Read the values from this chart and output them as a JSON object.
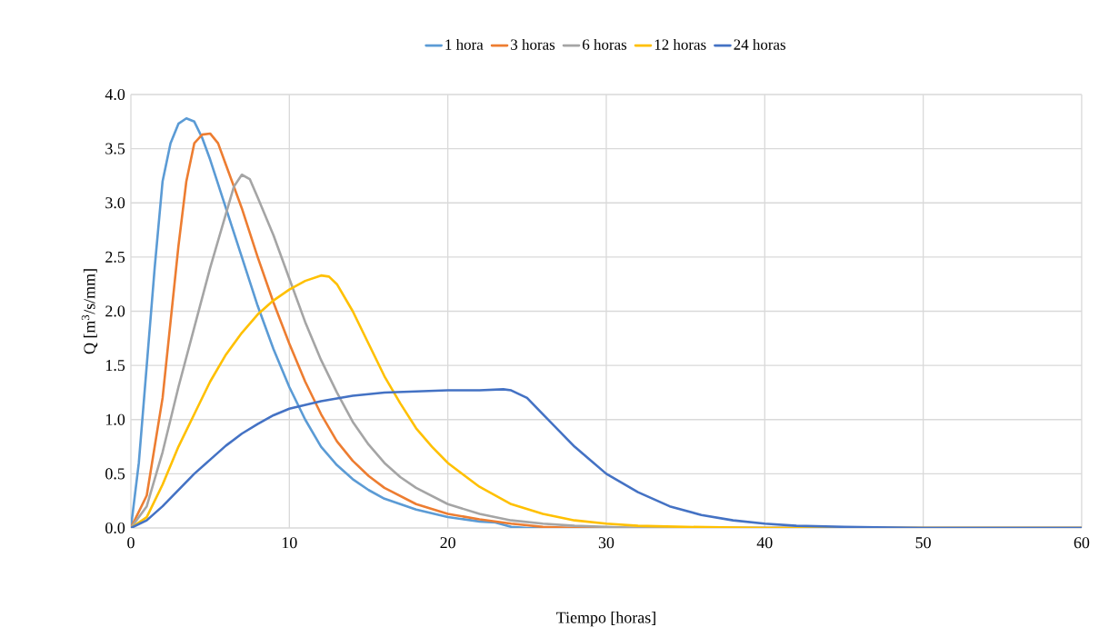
{
  "chart_data": {
    "type": "line",
    "xlabel": "Tiempo [horas]",
    "ylabel": "Q [m$^{3}$/s/mm]",
    "xlim": [
      0,
      60
    ],
    "xticks": [
      0,
      10,
      20,
      30,
      40,
      50,
      60
    ],
    "ylim": [
      0,
      4
    ],
    "yticks": [
      {
        "value": 0,
        "label": "0.0"
      },
      {
        "value": 0.5,
        "label": "0.5"
      },
      {
        "value": 1,
        "label": "1.0"
      },
      {
        "value": 1.5,
        "label": "1.5"
      },
      {
        "value": 2,
        "label": "2.0"
      },
      {
        "value": 2.5,
        "label": "2.5"
      },
      {
        "value": 3,
        "label": "3.0"
      },
      {
        "value": 3.5,
        "label": "3.5"
      },
      {
        "value": 4,
        "label": "4.0"
      }
    ],
    "grid": true,
    "legend": "top",
    "marker": "none",
    "line_style": "solid",
    "series": [
      {
        "name": "1 hora",
        "color": "#5b9bd5",
        "x": [
          0,
          0.5,
          1,
          1.5,
          2,
          2.5,
          3,
          3.5,
          4,
          4.5,
          5,
          6,
          7,
          8,
          9,
          10,
          11,
          12,
          13,
          14,
          15,
          16,
          18,
          20,
          22,
          23,
          24,
          25,
          30,
          60
        ],
        "values": [
          0,
          0.6,
          1.5,
          2.4,
          3.2,
          3.55,
          3.73,
          3.78,
          3.75,
          3.6,
          3.4,
          2.95,
          2.5,
          2.05,
          1.65,
          1.3,
          1.0,
          0.75,
          0.58,
          0.45,
          0.35,
          0.27,
          0.17,
          0.1,
          0.06,
          0.05,
          0.01,
          0,
          0,
          0
        ]
      },
      {
        "name": "3 horas",
        "color": "#ed7d31",
        "x": [
          0,
          1,
          2,
          2.5,
          3,
          3.5,
          4,
          4.5,
          5,
          5.5,
          6,
          7,
          8,
          9,
          10,
          11,
          12,
          13,
          14,
          15,
          16,
          18,
          20,
          22,
          24,
          26,
          28,
          60
        ],
        "values": [
          0,
          0.3,
          1.2,
          1.9,
          2.6,
          3.2,
          3.55,
          3.63,
          3.64,
          3.55,
          3.35,
          2.95,
          2.5,
          2.08,
          1.7,
          1.35,
          1.05,
          0.8,
          0.62,
          0.48,
          0.37,
          0.22,
          0.13,
          0.08,
          0.04,
          0.01,
          0,
          0
        ]
      },
      {
        "name": "6 horas",
        "color": "#a5a5a5",
        "x": [
          0,
          1,
          2,
          3,
          4,
          5,
          6,
          6.5,
          7,
          7.5,
          8,
          9,
          10,
          11,
          12,
          13,
          14,
          15,
          16,
          17,
          18,
          20,
          22,
          24,
          26,
          28,
          30,
          32,
          60
        ],
        "values": [
          0,
          0.2,
          0.7,
          1.3,
          1.85,
          2.4,
          2.9,
          3.15,
          3.26,
          3.22,
          3.05,
          2.7,
          2.3,
          1.9,
          1.55,
          1.25,
          0.98,
          0.77,
          0.6,
          0.47,
          0.37,
          0.22,
          0.13,
          0.07,
          0.04,
          0.02,
          0.01,
          0,
          0
        ]
      },
      {
        "name": "12 horas",
        "color": "#ffc000",
        "x": [
          0,
          1,
          2,
          3,
          4,
          5,
          6,
          7,
          8,
          9,
          10,
          11,
          12,
          12.5,
          13,
          14,
          15,
          16,
          17,
          18,
          19,
          20,
          22,
          24,
          26,
          28,
          30,
          32,
          35,
          40,
          60
        ],
        "values": [
          0,
          0.1,
          0.4,
          0.75,
          1.05,
          1.35,
          1.6,
          1.8,
          1.97,
          2.1,
          2.2,
          2.28,
          2.33,
          2.32,
          2.25,
          2.0,
          1.7,
          1.4,
          1.15,
          0.92,
          0.75,
          0.6,
          0.38,
          0.22,
          0.13,
          0.07,
          0.04,
          0.02,
          0.01,
          0,
          0
        ]
      },
      {
        "name": "24 horas",
        "color": "#4472c4",
        "x": [
          0,
          1,
          2,
          3,
          4,
          5,
          6,
          7,
          8,
          9,
          10,
          12,
          14,
          16,
          18,
          20,
          22,
          23.5,
          24,
          25,
          26,
          28,
          30,
          32,
          34,
          36,
          38,
          40,
          42,
          45,
          50,
          60
        ],
        "values": [
          0,
          0.07,
          0.2,
          0.35,
          0.5,
          0.63,
          0.76,
          0.87,
          0.96,
          1.04,
          1.1,
          1.17,
          1.22,
          1.25,
          1.26,
          1.27,
          1.27,
          1.28,
          1.27,
          1.2,
          1.05,
          0.75,
          0.5,
          0.33,
          0.2,
          0.12,
          0.07,
          0.04,
          0.02,
          0.01,
          0,
          0
        ]
      }
    ]
  }
}
